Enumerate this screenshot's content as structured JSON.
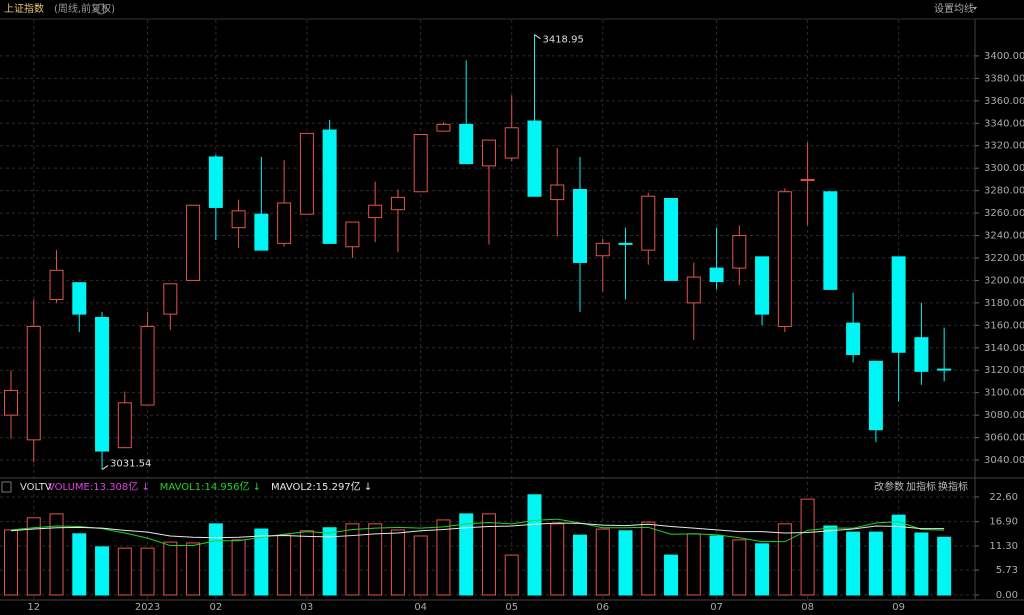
{
  "chart_data": [
    {
      "type": "candlestick",
      "title": "上证指数",
      "subtitle": "(周线,前复权)",
      "button": "设置均线",
      "categories": [
        null,
        "12",
        null,
        null,
        null,
        null,
        "2023",
        null,
        null,
        "02",
        null,
        null,
        null,
        "03",
        null,
        null,
        null,
        null,
        "04",
        null,
        null,
        null,
        "05",
        null,
        null,
        null,
        "06",
        null,
        null,
        null,
        null,
        "07",
        null,
        null,
        null,
        "08",
        null,
        null,
        null,
        "09",
        null,
        null
      ],
      "open": [
        3080,
        3058,
        3183,
        3198,
        3167,
        3051,
        3089,
        3170,
        3200,
        3310,
        3247,
        3259,
        3233,
        3259,
        3334,
        3230,
        3256,
        3263,
        3279,
        3333,
        3339,
        3302,
        3309,
        3342,
        3272,
        3281,
        3222,
        3233,
        3227,
        3273,
        3180,
        3211,
        3211,
        3221,
        3159,
        3289,
        3279,
        3162,
        3128,
        3221,
        3149,
        3121
      ],
      "high": [
        3120,
        3183,
        3227,
        3198,
        3172,
        3101,
        3172,
        3197,
        3267,
        3312,
        3272,
        3310,
        3307,
        3331,
        3343,
        3252,
        3288,
        3281,
        3330,
        3341,
        3396,
        3325,
        3365,
        3418.95,
        3318,
        3310,
        3237,
        3247,
        3278,
        3273,
        3216,
        3247,
        3249,
        3221,
        3282,
        3323,
        3279,
        3189,
        3128,
        3221,
        3180,
        3158
      ],
      "low": [
        3059,
        3038,
        3180,
        3154,
        3031.54,
        3051,
        3089,
        3156,
        3200,
        3236,
        3229,
        3227,
        3230,
        3259,
        3233,
        3220,
        3234,
        3225,
        3279,
        3333,
        3304,
        3232,
        3306,
        3275,
        3239,
        3172,
        3190,
        3183,
        3214,
        3200,
        3147,
        3192,
        3196,
        3160,
        3154,
        3249,
        3192,
        3127,
        3056,
        3092,
        3107,
        3110
      ],
      "close": [
        3102,
        3159,
        3209,
        3170,
        3048,
        3091,
        3159,
        3197,
        3267,
        3265,
        3262,
        3227,
        3269,
        3331,
        3233,
        3252,
        3267,
        3274,
        3330,
        3339,
        3304,
        3325,
        3336,
        3275,
        3285,
        3216,
        3233,
        3233,
        3275,
        3200,
        3203,
        3199,
        3240,
        3170,
        3279,
        3290,
        3192,
        3134,
        3067,
        3136,
        3119,
        3121
      ],
      "up_color": "#e5534b",
      "down_color": "#00f5f5",
      "ylim": [
        3024,
        3432
      ],
      "yticks": [
        {
          "value": 3040,
          "label": "3040.00"
        },
        {
          "value": 3060,
          "label": "3060.00"
        },
        {
          "value": 3080,
          "label": "3080.00"
        },
        {
          "value": 3100,
          "label": "3100.00"
        },
        {
          "value": 3120,
          "label": "3120.00"
        },
        {
          "value": 3140,
          "label": "3140.00"
        },
        {
          "value": 3160,
          "label": "3160.00"
        },
        {
          "value": 3180,
          "label": "3180.00"
        },
        {
          "value": 3200,
          "label": "3200.00"
        },
        {
          "value": 3220,
          "label": "3220.00"
        },
        {
          "value": 3240,
          "label": "3240.00"
        },
        {
          "value": 3260,
          "label": "3260.00"
        },
        {
          "value": 3280,
          "label": "3280.00"
        },
        {
          "value": 3300,
          "label": "3300.00"
        },
        {
          "value": 3320,
          "label": "3320.00"
        },
        {
          "value": 3340,
          "label": "3340.00"
        },
        {
          "value": 3360,
          "label": "3360.00"
        },
        {
          "value": 3380,
          "label": "3380.00"
        },
        {
          "value": 3400,
          "label": "3400.00"
        }
      ],
      "grid": true
    },
    {
      "type": "bar",
      "title": "VOLTV",
      "buttons": [
        "改参数",
        "加指标",
        "换指标"
      ],
      "series": [
        {
          "name": "VOLUME:13.308亿 ↓",
          "color": "#e040e0",
          "values": [
            15.0,
            17.8,
            18.7,
            14.1,
            11.1,
            10.8,
            10.8,
            12.2,
            12.0,
            16.4,
            12.7,
            15.2,
            13.8,
            14.8,
            15.5,
            16.4,
            16.4,
            15.0,
            13.6,
            17.3,
            18.7,
            18.7,
            9.2,
            23.1,
            16.4,
            13.8,
            15.2,
            14.8,
            16.8,
            9.2,
            14.1,
            13.6,
            12.7,
            11.8,
            16.4,
            22.1,
            15.9,
            14.5,
            14.5,
            18.4,
            14.3,
            13.308
          ]
        },
        {
          "name": "MAVOL1:14.956亿 ↓",
          "color": "#22d422",
          "values": [
            15.0,
            15.5,
            15.9,
            15.8,
            15.3,
            14.3,
            13.1,
            11.4,
            11.4,
            12.5,
            12.5,
            13.3,
            14.0,
            14.6,
            14.3,
            15.1,
            15.4,
            15.6,
            15.4,
            15.7,
            16.4,
            16.7,
            16.4,
            17.2,
            17.5,
            16.6,
            15.5,
            15.5,
            15.6,
            14.0,
            14.1,
            13.9,
            13.2,
            12.3,
            12.3,
            14.9,
            15.4,
            15.4,
            16.6,
            16.9,
            15.1,
            14.956
          ]
        },
        {
          "name": "MAVOL2:15.297亿 ↓",
          "color": "#e8e8e8",
          "values": [
            14.8,
            15.2,
            15.5,
            15.6,
            15.4,
            14.9,
            14.5,
            13.6,
            13.3,
            13.2,
            13.3,
            13.6,
            13.7,
            13.5,
            13.4,
            13.7,
            14.1,
            14.3,
            14.8,
            15.1,
            15.5,
            15.8,
            15.9,
            16.3,
            16.6,
            16.5,
            16.1,
            16.0,
            16.3,
            15.8,
            15.4,
            15.0,
            14.6,
            14.6,
            14.3,
            14.4,
            14.8,
            15.2,
            15.9,
            15.8,
            15.3,
            15.297
          ]
        }
      ],
      "ylim": [
        -1.15,
        24.2
      ],
      "yticks": [
        {
          "value": 0,
          "label": "0.00"
        },
        {
          "value": 5.73,
          "label": "5.73"
        },
        {
          "value": 11.3,
          "label": "11.30"
        },
        {
          "value": 16.9,
          "label": "16.90"
        },
        {
          "value": 22.6,
          "label": "22.60"
        }
      ]
    }
  ]
}
